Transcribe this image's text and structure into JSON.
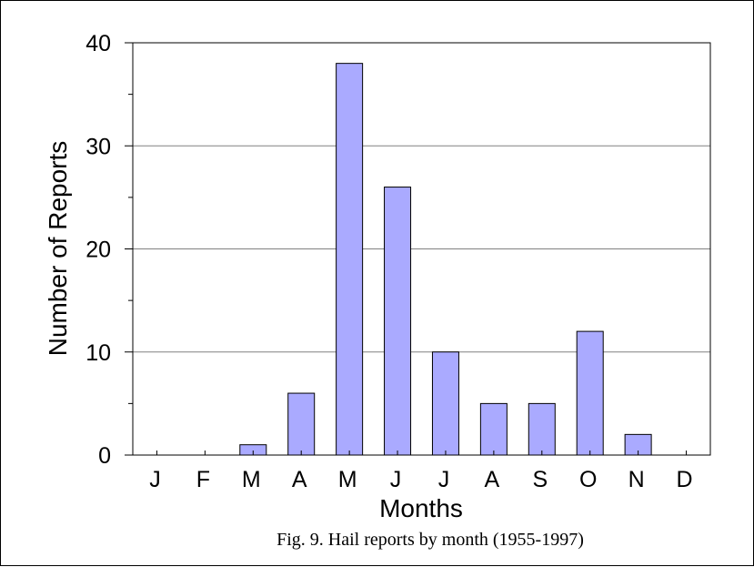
{
  "chart_data": {
    "type": "bar",
    "categories": [
      "J",
      "F",
      "M",
      "A",
      "M",
      "J",
      "J",
      "A",
      "S",
      "O",
      "N",
      "D"
    ],
    "values": [
      0,
      0,
      1,
      6,
      38,
      26,
      10,
      5,
      5,
      12,
      2,
      0
    ],
    "title": "",
    "caption": "Fig. 9. Hail reports by month (1955-1997)",
    "xlabel": "Months",
    "ylabel": "Number of Reports",
    "ylim": [
      0,
      40
    ],
    "yticks": [
      "0",
      "10",
      "20",
      "30",
      "40"
    ],
    "ytick_values": [
      0,
      10,
      20,
      30,
      40
    ],
    "minor_tick_step": 5,
    "grid": true,
    "legend": "none",
    "colors": {
      "bar_fill": "#aaaaff",
      "bar_stroke": "#000000",
      "grid": "#808080"
    }
  }
}
